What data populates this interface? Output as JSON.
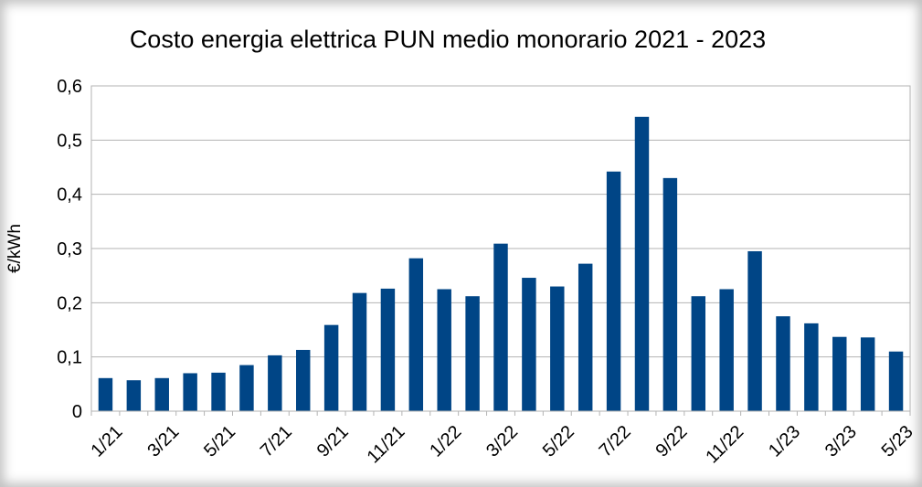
{
  "chart_data": {
    "type": "bar",
    "title": "Costo energia elettrica PUN medio monorario 2021 - 2023",
    "xlabel": "",
    "ylabel": "€/kWh",
    "ylim": [
      0,
      0.6
    ],
    "y_ticks": [
      0,
      0.1,
      0.2,
      0.3,
      0.4,
      0.5,
      0.6
    ],
    "y_tick_labels": [
      "0",
      "0,1",
      "0,2",
      "0,3",
      "0,4",
      "0,5",
      "0,6"
    ],
    "grid": true,
    "bar_color": "#004586",
    "categories": [
      "1/21",
      "2/21",
      "3/21",
      "4/21",
      "5/21",
      "6/21",
      "7/21",
      "8/21",
      "9/21",
      "10/21",
      "11/21",
      "12/21",
      "1/22",
      "2/22",
      "3/22",
      "4/22",
      "5/22",
      "6/22",
      "7/22",
      "8/22",
      "9/22",
      "10/22",
      "11/22",
      "12/22",
      "1/23",
      "2/23",
      "3/23",
      "4/23",
      "5/23"
    ],
    "x_tick_labels": [
      "1/21",
      "3/21",
      "5/21",
      "7/21",
      "9/21",
      "11/21",
      "1/22",
      "3/22",
      "5/22",
      "7/22",
      "9/22",
      "11/22",
      "1/23",
      "3/23",
      "5/23"
    ],
    "values": [
      0.061,
      0.057,
      0.061,
      0.07,
      0.071,
      0.085,
      0.103,
      0.113,
      0.159,
      0.218,
      0.226,
      0.282,
      0.225,
      0.212,
      0.309,
      0.246,
      0.23,
      0.272,
      0.442,
      0.543,
      0.43,
      0.212,
      0.225,
      0.295,
      0.175,
      0.162,
      0.137,
      0.136,
      0.11
    ]
  }
}
